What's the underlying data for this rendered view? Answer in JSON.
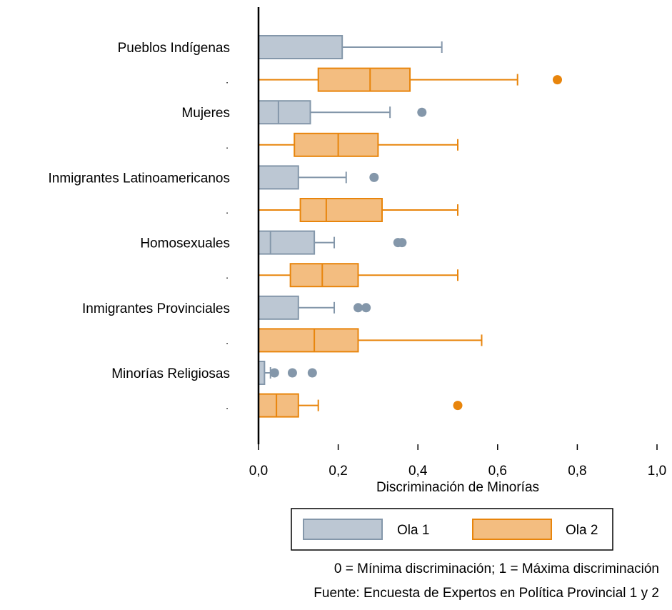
{
  "chart_data": {
    "type": "boxplot",
    "orientation": "horizontal",
    "xlabel": "Discriminación de Minorías",
    "xlim": [
      0,
      1
    ],
    "xticks": [
      0,
      0.2,
      0.4,
      0.6,
      0.8,
      1.0
    ],
    "xtick_labels": [
      "0,0",
      "0,2",
      "0,4",
      "0,6",
      "0,8",
      "1,0"
    ],
    "legend": {
      "placement": "bottom",
      "entries": [
        "Ola 1",
        "Ola 2"
      ]
    },
    "categories": [
      "Pueblos Indígenas",
      "Mujeres",
      "Inmigrantes Latinoamericanos",
      "Homosexuales",
      "Inmigrantes Provinciales",
      "Minorías Religiosas"
    ],
    "series": [
      {
        "name": "Ola 1",
        "color": "#8497aa",
        "fill": "#bcc7d3",
        "boxes": [
          {
            "min": 0,
            "q1": 0,
            "median": 0,
            "q3": 0.21,
            "max": 0.46,
            "outliers": []
          },
          {
            "min": 0,
            "q1": 0,
            "median": 0.05,
            "q3": 0.13,
            "max": 0.33,
            "outliers": [
              0.41
            ]
          },
          {
            "min": 0,
            "q1": 0,
            "median": 0,
            "q3": 0.1,
            "max": 0.22,
            "outliers": [
              0.29
            ]
          },
          {
            "min": 0,
            "q1": 0,
            "median": 0.03,
            "q3": 0.14,
            "max": 0.19,
            "outliers": [
              0.35,
              0.36
            ]
          },
          {
            "min": 0,
            "q1": 0,
            "median": 0,
            "q3": 0.1,
            "max": 0.19,
            "outliers": [
              0.25,
              0.27
            ]
          },
          {
            "min": 0,
            "q1": 0,
            "median": 0,
            "q3": 0.015,
            "max": 0.03,
            "outliers": [
              0.04,
              0.085,
              0.135
            ]
          }
        ]
      },
      {
        "name": "Ola 2",
        "color": "#e8850c",
        "fill": "#f3bd80",
        "boxes": [
          {
            "min": 0,
            "q1": 0.15,
            "median": 0.28,
            "q3": 0.38,
            "max": 0.65,
            "outliers": [
              0.75
            ]
          },
          {
            "min": 0,
            "q1": 0.09,
            "median": 0.2,
            "q3": 0.3,
            "max": 0.5,
            "outliers": []
          },
          {
            "min": 0,
            "q1": 0.105,
            "median": 0.17,
            "q3": 0.31,
            "max": 0.5,
            "outliers": []
          },
          {
            "min": 0,
            "q1": 0.08,
            "median": 0.16,
            "q3": 0.25,
            "max": 0.5,
            "outliers": []
          },
          {
            "min": 0,
            "q1": 0,
            "median": 0.14,
            "q3": 0.25,
            "max": 0.56,
            "outliers": []
          },
          {
            "min": 0,
            "q1": 0,
            "median": 0.045,
            "q3": 0.1,
            "max": 0.15,
            "outliers": [
              0.5
            ]
          }
        ]
      }
    ],
    "row_placeholder": "."
  },
  "notes": {
    "scale": "0 = Mínima discriminación; 1 = Máxima discriminación",
    "source": "Fuente: Encuesta de Expertos en Política Provincial 1 y 2"
  }
}
